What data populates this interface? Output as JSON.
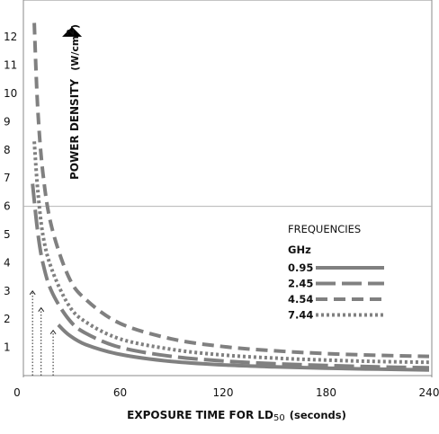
{
  "chart_data": {
    "type": "line",
    "xlabel": {
      "main": "EXPOSURE TIME FOR LD",
      "sub": "50",
      "units": "(seconds)"
    },
    "ylabel": {
      "main": "POWER DENSITY",
      "units": "(W/cm",
      "sup": "2",
      "close": ")"
    },
    "xlim": [
      0,
      240
    ],
    "ylim": [
      0,
      12.8
    ],
    "x_ticks": [
      "0",
      "60",
      "120",
      "180",
      "240"
    ],
    "y_ticks": [
      "1",
      "2",
      "3",
      "4",
      "5",
      "6",
      "7",
      "8",
      "9",
      "10",
      "11",
      "12"
    ],
    "y_tick_values": [
      1,
      2,
      3,
      4,
      5,
      6,
      7,
      8,
      9,
      10,
      11,
      12
    ],
    "x_tick_values": [
      0,
      60,
      120,
      180,
      240
    ],
    "reference_line_y": 6,
    "legend": {
      "title": "FREQUENCIES",
      "unit_header": "GHz",
      "position": "right"
    },
    "series": [
      {
        "name": "0.95",
        "style": "solid",
        "color": "#808080",
        "x": [
          24,
          30,
          40,
          60,
          90,
          120,
          150,
          180,
          210,
          240
        ],
        "y": [
          1.8,
          1.45,
          1.1,
          0.75,
          0.5,
          0.38,
          0.31,
          0.26,
          0.23,
          0.2
        ]
      },
      {
        "name": "2.45",
        "style": "long-dash",
        "color": "#808080",
        "x": [
          9,
          12,
          15,
          20,
          30,
          40,
          60,
          90,
          120,
          150,
          180,
          210,
          240
        ],
        "y": [
          6.8,
          5.1,
          4.0,
          3.0,
          2.0,
          1.5,
          1.0,
          0.68,
          0.52,
          0.42,
          0.36,
          0.31,
          0.28
        ]
      },
      {
        "name": "4.54",
        "style": "dash",
        "color": "#808080",
        "x": [
          10,
          12,
          15,
          20,
          30,
          40,
          60,
          90,
          120,
          150,
          180,
          210,
          240
        ],
        "y": [
          12.5,
          9.5,
          7.2,
          5.3,
          3.5,
          2.7,
          1.85,
          1.3,
          1.03,
          0.88,
          0.78,
          0.72,
          0.68
        ]
      },
      {
        "name": "7.44",
        "style": "dotted",
        "color": "#808080",
        "x": [
          10,
          12,
          15,
          20,
          30,
          40,
          60,
          90,
          120,
          150,
          180,
          210,
          240
        ],
        "y": [
          8.3,
          6.6,
          5.0,
          3.8,
          2.5,
          1.9,
          1.3,
          0.93,
          0.73,
          0.62,
          0.55,
          0.5,
          0.47
        ]
      }
    ],
    "threshold_markers": [
      {
        "x": 9,
        "y": 3.0
      },
      {
        "x": 14,
        "y": 2.4
      },
      {
        "x": 21,
        "y": 1.6
      }
    ],
    "y_axis_marker": {
      "x": 32,
      "y": 12.2,
      "shape": "up-triangle"
    }
  }
}
